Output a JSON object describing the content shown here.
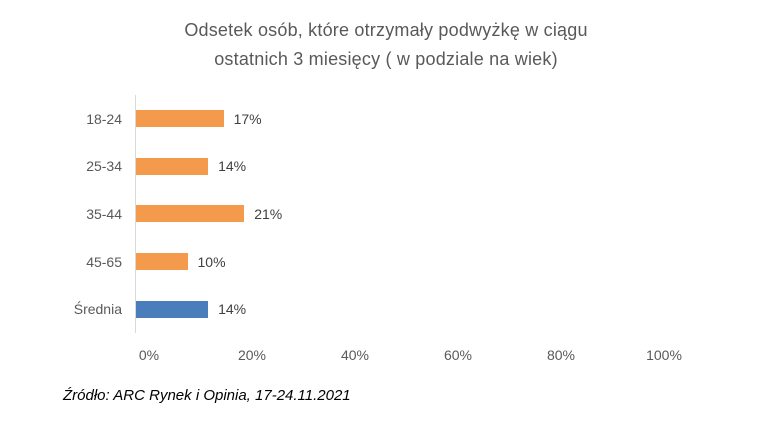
{
  "page": {
    "background": "#ffffff"
  },
  "chart_data": {
    "type": "bar",
    "orientation": "horizontal",
    "title": "Odsetek osób, które otrzymały podwyżkę w ciągu ostatnich 3 miesięcy ( w podziale na wiek)",
    "title_lines": [
      "Odsetek osób, które otrzymały podwyżkę w ciągu",
      "ostatnich 3 miesięcy ( w podziale na wiek)"
    ],
    "categories": [
      "18-24",
      "25-34",
      "35-44",
      "45-65",
      "Średnia"
    ],
    "values": [
      17,
      14,
      21,
      10,
      14
    ],
    "value_labels": [
      "17%",
      "14%",
      "21%",
      "10%",
      "14%"
    ],
    "bar_colors": [
      "#F49A4C",
      "#F49A4C",
      "#F49A4C",
      "#F49A4C",
      "#4A7EBB"
    ],
    "x_ticks": [
      "0%",
      "20%",
      "40%",
      "60%",
      "80%",
      "100%"
    ],
    "x_tick_values": [
      0,
      20,
      40,
      60,
      80,
      100
    ],
    "xlim": [
      0,
      100
    ],
    "grid": "none",
    "legend": "none",
    "ylabel": "",
    "xlabel": "",
    "source": "Źródło: ARC Rynek i Opinia, 17-24.11.2021",
    "colors": {
      "title_text": "#595959",
      "axis_label_text": "#595959",
      "value_label_text": "#404040",
      "axis_line": "#D9D9D9",
      "source_text": "#000000",
      "orange_series": "#F49A4C",
      "blue_average": "#4A7EBB"
    }
  }
}
